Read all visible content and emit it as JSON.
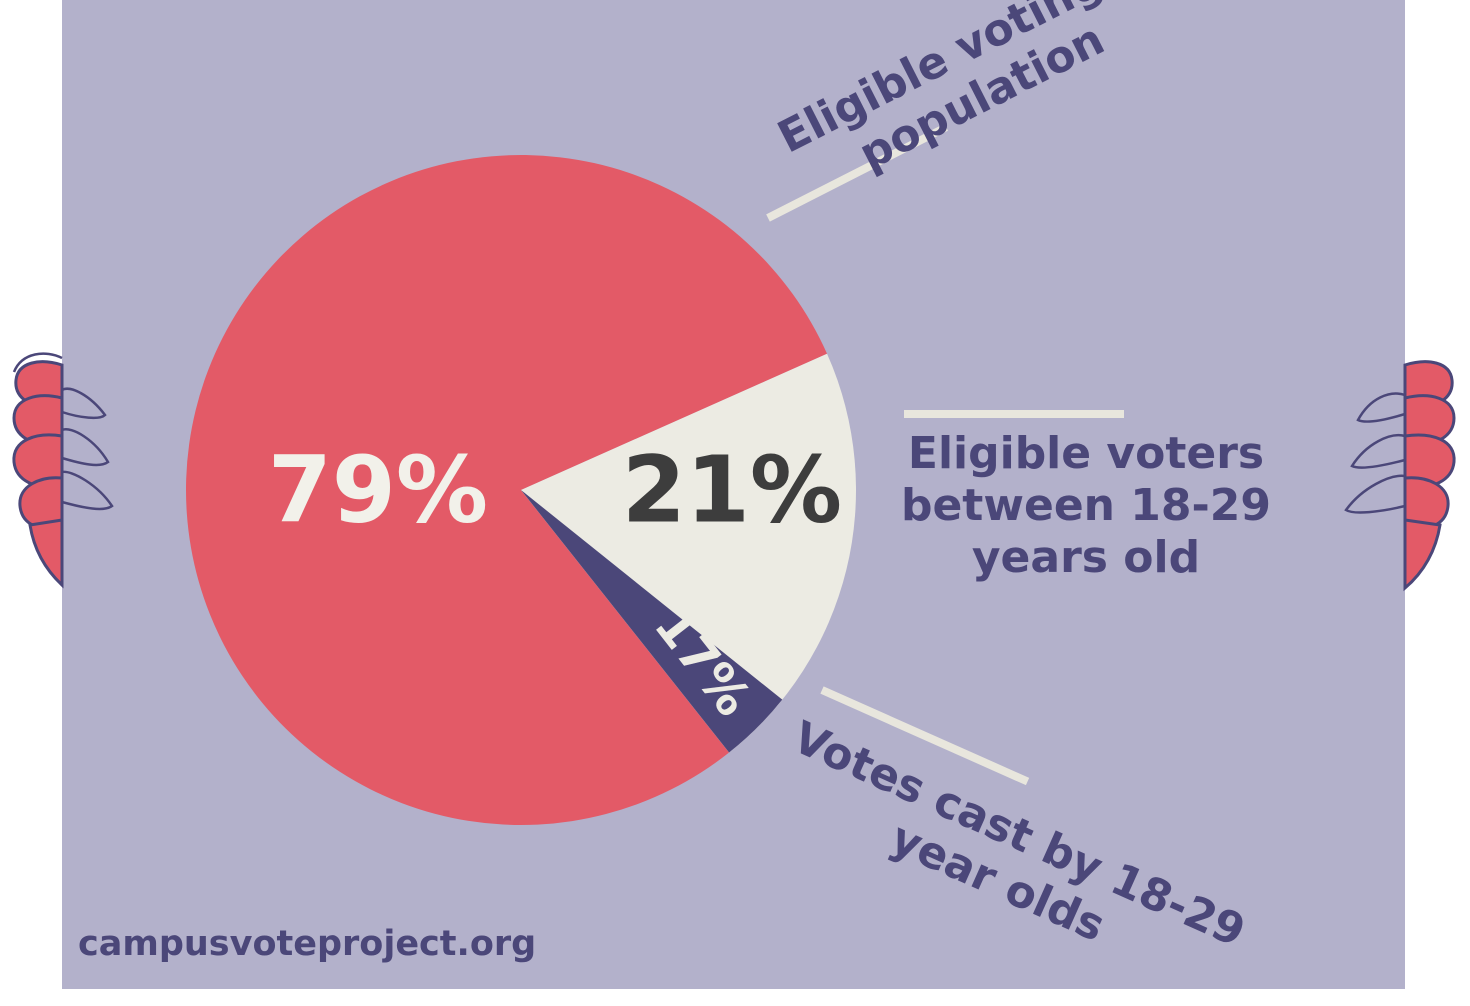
{
  "colors": {
    "background": "#b3b1cb",
    "red": "#e35a67",
    "cream": "#ecebe3",
    "navy": "#4b4779",
    "dark_text": "#3d3d3d",
    "light_text": "#f2f1ea"
  },
  "chart_data": {
    "type": "pie",
    "title": "",
    "slices": [
      {
        "label": "Eligible voting population",
        "value": 79,
        "display": "79%",
        "color": "#e35a67",
        "text_color": "#f2f1ea"
      },
      {
        "label": "Eligible voters between 18-29 years old",
        "value": 21,
        "display": "21%",
        "color": "#ecebe3",
        "text_color": "#3d3d3d"
      },
      {
        "label": "Votes cast by 18-29 year olds",
        "value": 17,
        "display": "17%",
        "color": "#4b4779",
        "text_color": "#ecebe3"
      }
    ]
  },
  "annotations": {
    "eligible_population": [
      "Eligible voting",
      "population"
    ],
    "eligible_young": [
      "Eligible voters",
      "between 18-29",
      "years old"
    ],
    "votes_cast": [
      "Votes cast by 18-29",
      "year olds"
    ]
  },
  "footer": {
    "website": "campusvoteproject.org"
  }
}
